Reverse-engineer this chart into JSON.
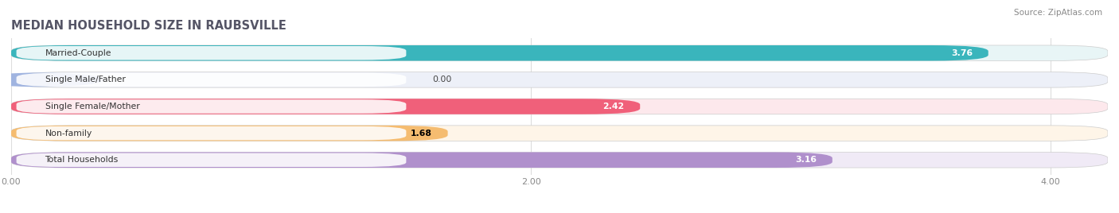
{
  "title": "MEDIAN HOUSEHOLD SIZE IN RAUBSVILLE",
  "source": "Source: ZipAtlas.com",
  "categories": [
    "Married-Couple",
    "Single Male/Father",
    "Single Female/Mother",
    "Non-family",
    "Total Households"
  ],
  "values": [
    3.76,
    0.0,
    2.42,
    1.68,
    3.16
  ],
  "bar_colors": [
    "#3ab5bc",
    "#a0b4e0",
    "#f0607a",
    "#f5bc70",
    "#b090cc"
  ],
  "bar_bg_colors": [
    "#e8f5f6",
    "#edf0f8",
    "#fde8ec",
    "#fef5e8",
    "#f0eaf6"
  ],
  "value_label_colors": [
    "white",
    "black",
    "white",
    "black",
    "white"
  ],
  "xlim": [
    0,
    4.22
  ],
  "xticks": [
    0.0,
    2.0,
    4.0
  ],
  "xtick_labels": [
    "0.00",
    "2.00",
    "4.00"
  ],
  "title_fontsize": 10.5,
  "bar_height": 0.58,
  "bar_gap": 0.82,
  "figsize": [
    14.06,
    2.68
  ],
  "dpi": 100
}
